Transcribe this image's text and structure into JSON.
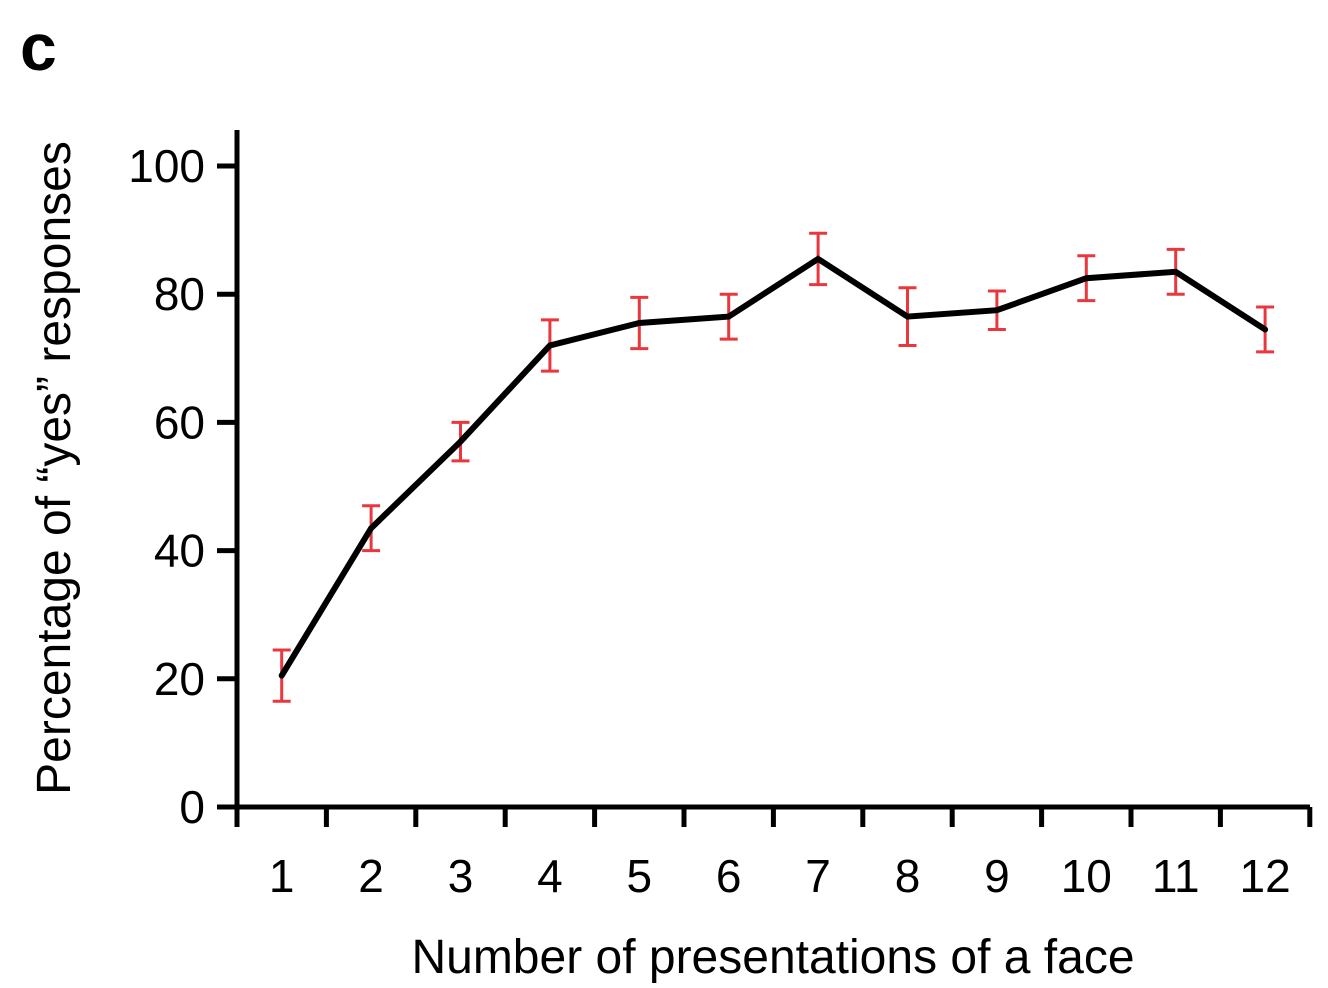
{
  "panel_label": "c",
  "chart_data": {
    "type": "line",
    "title": "",
    "xlabel": "Number of presentations of a face",
    "ylabel": "Percentage of “yes” responses",
    "categories": [
      "1",
      "2",
      "3",
      "4",
      "5",
      "6",
      "7",
      "8",
      "9",
      "10",
      "11",
      "12"
    ],
    "yticks": [
      "0",
      "20",
      "40",
      "60",
      "80",
      "100"
    ],
    "ylim": [
      0,
      100
    ],
    "grid": false,
    "legend": "none",
    "series": [
      {
        "values": [
          20.5,
          43.5,
          57,
          72,
          75.5,
          76.5,
          85.5,
          76.5,
          77.5,
          82.5,
          83.5,
          74.5
        ],
        "error": [
          4,
          3.5,
          3,
          4,
          4,
          3.5,
          4,
          4.5,
          3,
          3.5,
          3.5,
          3.5
        ],
        "color": "#000000",
        "error_color": "#e8383d"
      }
    ]
  }
}
